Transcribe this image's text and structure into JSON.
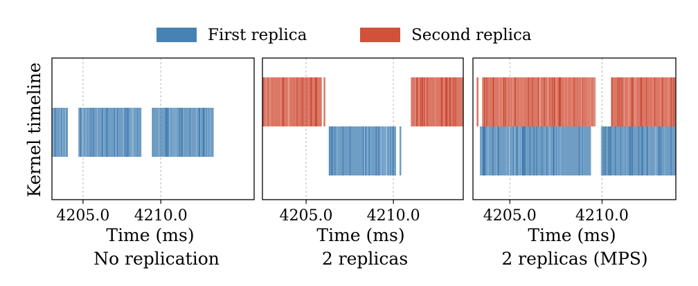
{
  "chart_data": {
    "type": "timeline",
    "legend": {
      "position": "top-center",
      "entries": [
        {
          "name": "First replica",
          "color": "#4682b4"
        },
        {
          "name": "Second replica",
          "color": "#d1513a"
        }
      ]
    },
    "ylabel": "Kernel timeline",
    "panels": [
      {
        "xlabel": "Time (ms)",
        "caption": "No replication",
        "xlim": [
          4203.0,
          4216.0
        ],
        "xticks": [
          4205.0,
          4210.0
        ],
        "xtick_labels": [
          "4205.0",
          "4210.0"
        ],
        "series": [
          {
            "name": "First replica",
            "lane": "middle",
            "segments": [
              [
                4203.0,
                4204.0
              ],
              [
                4204.7,
                4208.75
              ],
              [
                4209.45,
                4213.4
              ]
            ]
          }
        ]
      },
      {
        "xlabel": "Time (ms)",
        "caption": "2 replicas",
        "xlim": [
          4202.5,
          4214.0
        ],
        "xticks": [
          4205.0,
          4210.0
        ],
        "xtick_labels": [
          "4205.0",
          "4210.0"
        ],
        "series": [
          {
            "name": "Second replica",
            "lane": "top",
            "segments": [
              [
                4202.5,
                4205.9
              ],
              [
                4206.0,
                4206.1
              ],
              [
                4211.0,
                4214.0
              ]
            ]
          },
          {
            "name": "First replica",
            "lane": "bottom",
            "segments": [
              [
                4206.3,
                4210.15
              ],
              [
                4210.35,
                4210.45
              ]
            ]
          }
        ]
      },
      {
        "xlabel": "Time (ms)",
        "caption": "2 replicas (MPS)",
        "xlim": [
          4203.0,
          4214.0
        ],
        "xticks": [
          4205.0,
          4210.0
        ],
        "xtick_labels": [
          "4205.0",
          "4210.0"
        ],
        "series": [
          {
            "name": "Second replica",
            "lane": "top",
            "segments": [
              [
                4203.2,
                4203.3
              ],
              [
                4203.5,
                4209.65
              ],
              [
                4210.5,
                4214.0
              ]
            ]
          },
          {
            "name": "First replica",
            "lane": "bottom",
            "segments": [
              [
                4203.4,
                4209.4
              ],
              [
                4209.95,
                4214.0
              ]
            ]
          }
        ]
      }
    ]
  }
}
